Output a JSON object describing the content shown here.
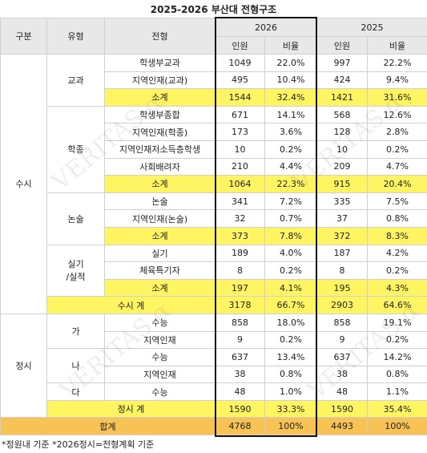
{
  "title": "2025-2026 부산대 전형구조",
  "header": {
    "cols": [
      "구분",
      "유형",
      "전형"
    ],
    "years": [
      {
        "year": "2026",
        "labels": [
          "인원",
          "비율"
        ]
      },
      {
        "year": "2025",
        "labels": [
          "인원",
          "비율"
        ]
      }
    ]
  },
  "table": {
    "groups": [
      {
        "label": "수시",
        "types": [
          {
            "label": "교과",
            "rows": [
              {
                "name": "학생부교과",
                "n26": 1049,
                "r26": "22.0%",
                "n25": 997,
                "r25": "22.2%"
              },
              {
                "name": "지역인재(교과)",
                "n26": 495,
                "r26": "10.4%",
                "n25": 424,
                "r25": "9.4%"
              }
            ],
            "subtotal": {
              "name": "소계",
              "n26": 1544,
              "r26": "32.4%",
              "n25": 1421,
              "r25": "31.6%"
            }
          },
          {
            "label": "학종",
            "rows": [
              {
                "name": "학생부종합",
                "n26": 671,
                "r26": "14.1%",
                "n25": 568,
                "r25": "12.6%"
              },
              {
                "name": "지역인재(학종)",
                "n26": 173,
                "r26": "3.6%",
                "n25": 128,
                "r25": "2.8%"
              },
              {
                "name": "지역인재저소득층학생",
                "n26": 10,
                "r26": "0.2%",
                "n25": 10,
                "r25": "0.2%"
              },
              {
                "name": "사회배려자",
                "n26": 210,
                "r26": "4.4%",
                "n25": 209,
                "r25": "4.7%"
              }
            ],
            "subtotal": {
              "name": "소계",
              "n26": 1064,
              "r26": "22.3%",
              "n25": 915,
              "r25": "20.4%"
            }
          },
          {
            "label": "논술",
            "rows": [
              {
                "name": "논술",
                "n26": 341,
                "r26": "7.2%",
                "n25": 335,
                "r25": "7.5%"
              },
              {
                "name": "지역인재(논술)",
                "n26": 32,
                "r26": "0.7%",
                "n25": 37,
                "r25": "0.8%"
              }
            ],
            "subtotal": {
              "name": "소계",
              "n26": 373,
              "r26": "7.8%",
              "n25": 372,
              "r25": "8.3%"
            }
          },
          {
            "label": "실기\n/실적",
            "rows": [
              {
                "name": "실기",
                "n26": 189,
                "r26": "4.0%",
                "n25": 187,
                "r25": "4.2%"
              },
              {
                "name": "체육특기자",
                "n26": 8,
                "r26": "0.2%",
                "n25": 8,
                "r25": "0.2%"
              }
            ],
            "subtotal": {
              "name": "소계",
              "n26": 197,
              "r26": "4.1%",
              "n25": 195,
              "r25": "4.3%"
            }
          }
        ],
        "total": {
          "name": "수시 계",
          "n26": 3178,
          "r26": "66.7%",
          "n25": 2903,
          "r25": "64.6%"
        }
      },
      {
        "label": "정시",
        "types": [
          {
            "label": "가",
            "rows": [
              {
                "name": "수능",
                "n26": 858,
                "r26": "18.0%",
                "n25": 858,
                "r25": "19.1%"
              },
              {
                "name": "지역인재",
                "n26": 9,
                "r26": "0.2%",
                "n25": 9,
                "r25": "0.2%"
              }
            ]
          },
          {
            "label": "나",
            "rows": [
              {
                "name": "수능",
                "n26": 637,
                "r26": "13.4%",
                "n25": 637,
                "r25": "14.2%"
              },
              {
                "name": "지역인재",
                "n26": 38,
                "r26": "0.8%",
                "n25": 38,
                "r25": "0.8%"
              }
            ]
          },
          {
            "label": "다",
            "rows": [
              {
                "name": "수능",
                "n26": 48,
                "r26": "1.0%",
                "n25": 48,
                "r25": "1.1%"
              }
            ]
          }
        ],
        "total": {
          "name": "정시 계",
          "n26": 1590,
          "r26": "33.3%",
          "n25": 1590,
          "r25": "35.4%"
        }
      }
    ],
    "grand": {
      "name": "합계",
      "n26": 4768,
      "r26": "100%",
      "n25": 4493,
      "r25": "100%"
    }
  },
  "note": "*정원내 기준 *2026정시=전형계획 기준",
  "watermark": "VERITAS α"
}
